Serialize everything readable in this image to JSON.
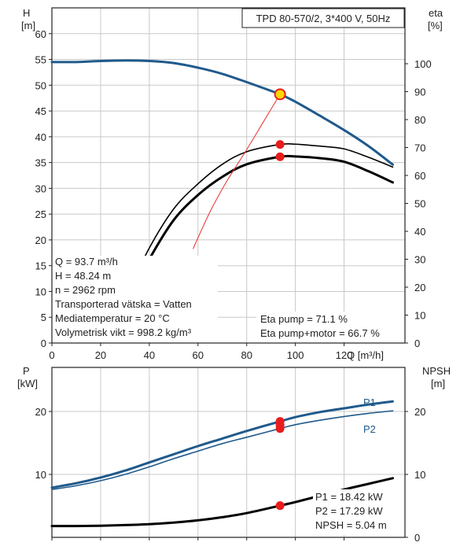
{
  "header": {
    "pump_model": "TPD 80-570/2, 3*400 V, 50Hz"
  },
  "upper_panel": {
    "left_axis_label": "H",
    "left_axis_unit": "[m]",
    "right_axis_label": "eta",
    "right_axis_unit": "[%]",
    "x_axis_label": "Q [m³/h]",
    "info_lines": [
      "Q = 93.7 m³/h",
      "H = 48.24 m",
      "n = 2962 rpm",
      "Transporterad vätska = Vatten",
      "Mediatemperatur = 20 °C",
      "Volymetrisk vikt = 998.2 kg/m³"
    ],
    "eff_lines": [
      "Eta pump = 71.1 %",
      "Eta pump+motor = 66.7 %"
    ]
  },
  "lower_panel": {
    "left_axis_label": "P",
    "left_axis_unit": "[kW]",
    "right_axis_label": "NPSH",
    "right_axis_unit": "[m]",
    "info_lines": [
      "P1 = 18.42 kW",
      "P2 = 17.29 kW",
      "NPSH = 5.04 m"
    ]
  },
  "colors": {
    "head": "#1f5a8c",
    "efficiency": "#000000",
    "power": "#1f5a8c",
    "npsh": "#000000",
    "system_curve": "#e83030",
    "marker": "#e81c1c",
    "duty_marker_fill": "#ffd700",
    "grid": "#c8c8c8"
  },
  "chart_data": [
    {
      "type": "line",
      "x_range": [
        0,
        145
      ],
      "y_left_range": [
        0,
        65
      ],
      "y_right_range": [
        0,
        120
      ],
      "x_ticks": [
        0,
        20,
        40,
        60,
        80,
        100,
        120
      ],
      "y_left_ticks": [
        0,
        5,
        10,
        15,
        20,
        25,
        30,
        35,
        40,
        45,
        50,
        55,
        60
      ],
      "y_right_ticks": [
        0,
        10,
        20,
        30,
        40,
        50,
        60,
        70,
        80,
        90,
        100
      ],
      "grid": true,
      "series": [
        {
          "axis": "left",
          "role": "head",
          "x": [
            0,
            10,
            20,
            30,
            40,
            50,
            60,
            70,
            80,
            90,
            93.7,
            100,
            110,
            120,
            130,
            140
          ],
          "y": [
            54.5,
            54.5,
            54.7,
            54.8,
            54.7,
            54.3,
            53.4,
            52.2,
            50.6,
            48.9,
            48.24,
            46.8,
            44.1,
            41.3,
            38.2,
            34.6
          ]
        },
        {
          "axis": "right",
          "role": "eta pump",
          "x": [
            30,
            40,
            50,
            60,
            70,
            80,
            93.7,
            100,
            110,
            120,
            130,
            140
          ],
          "y": [
            16,
            34,
            48,
            57,
            64,
            68.5,
            71.1,
            71.2,
            70.5,
            69.5,
            66.5,
            63
          ]
        },
        {
          "axis": "right",
          "role": "eta pump+motor",
          "x": [
            30,
            40,
            50,
            60,
            70,
            80,
            93.7,
            100,
            110,
            120,
            130,
            140
          ],
          "y": [
            13,
            30,
            44,
            53,
            59.5,
            64,
            66.7,
            66.8,
            66.2,
            64.9,
            61.5,
            57.5
          ]
        },
        {
          "axis": "left",
          "role": "system curve",
          "x": [
            58,
            65,
            72,
            80,
            87,
            93.7
          ],
          "y": [
            18.3,
            25.5,
            31.5,
            37.5,
            43,
            48.24
          ]
        }
      ],
      "points": [
        {
          "axis": "left",
          "x": 93.7,
          "y": 48.24,
          "role": "duty point"
        },
        {
          "axis": "right",
          "x": 93.7,
          "y": 71.1
        },
        {
          "axis": "right",
          "x": 93.7,
          "y": 66.7
        }
      ]
    },
    {
      "type": "line",
      "x_range": [
        0,
        145
      ],
      "y_left_range": [
        0,
        27
      ],
      "y_right_range": [
        0,
        27
      ],
      "y_left_ticks": [
        10,
        20
      ],
      "y_right_ticks": [
        0,
        10,
        20
      ],
      "grid": true,
      "series": [
        {
          "name": "P1",
          "axis": "left",
          "x": [
            0,
            10,
            20,
            30,
            40,
            50,
            60,
            70,
            80,
            93.7,
            100,
            110,
            120,
            130,
            140
          ],
          "y": [
            7.9,
            8.6,
            9.5,
            10.6,
            11.9,
            13.2,
            14.5,
            15.7,
            16.9,
            18.42,
            19.1,
            19.9,
            20.5,
            21.1,
            21.6
          ]
        },
        {
          "name": "P2",
          "axis": "left",
          "x": [
            0,
            10,
            20,
            30,
            40,
            50,
            60,
            70,
            80,
            93.7,
            100,
            110,
            120,
            130,
            140
          ],
          "y": [
            7.6,
            8.2,
            9.0,
            10.0,
            11.2,
            12.5,
            13.7,
            14.9,
            15.9,
            17.29,
            17.9,
            18.6,
            19.2,
            19.7,
            20.1
          ]
        },
        {
          "axis": "right",
          "role": "NPSH",
          "x": [
            0,
            10,
            20,
            30,
            40,
            50,
            60,
            70,
            80,
            93.7,
            100,
            110,
            120,
            130,
            140
          ],
          "y": [
            1.8,
            1.8,
            1.85,
            1.95,
            2.1,
            2.35,
            2.7,
            3.2,
            3.85,
            5.04,
            5.6,
            6.6,
            7.6,
            8.5,
            9.4
          ]
        }
      ],
      "points": [
        {
          "axis": "left",
          "x": 93.7,
          "y": 18.42
        },
        {
          "axis": "left",
          "x": 93.7,
          "y": 17.29
        },
        {
          "axis": "left",
          "x": 93.7,
          "y": 17.85
        },
        {
          "axis": "right",
          "x": 93.7,
          "y": 5.04
        }
      ]
    }
  ]
}
